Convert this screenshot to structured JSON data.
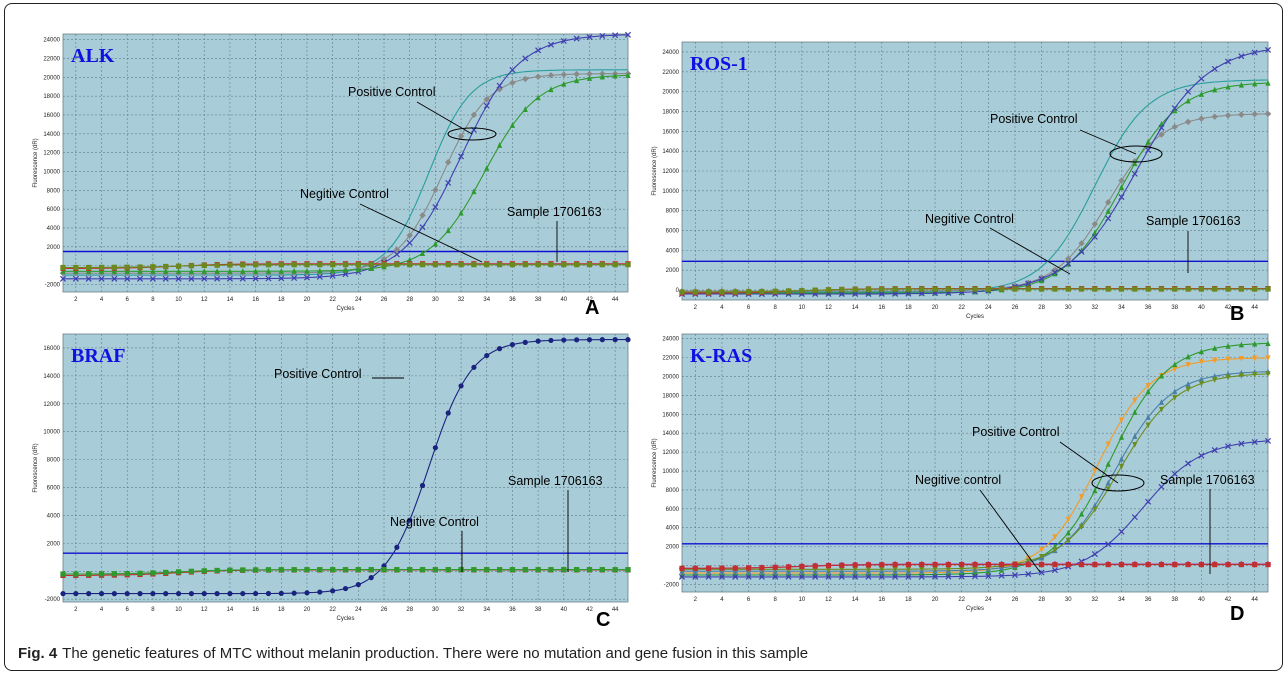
{
  "figure": {
    "caption_label": "Fig. 4",
    "caption_text": "The genetic features of MTC without melanin production. There were no mutation and gene fusion in this sample"
  },
  "colors": {
    "plot_bg": "#a9cdd8",
    "grid": "#5f7f8c",
    "threshold": "#1010d0",
    "gene_title": "#1010e0",
    "annotation": "#000000"
  },
  "chart_data": [
    {
      "id": "A",
      "type": "line",
      "title": "ALK",
      "panel_letter": "A",
      "xlabel": "Cycles",
      "ylabel": "Fluorescence (dR)",
      "xlim": [
        1,
        45
      ],
      "ylim": [
        -2800,
        24600
      ],
      "x_ticks": [
        2,
        4,
        6,
        8,
        10,
        12,
        14,
        16,
        18,
        20,
        22,
        24,
        26,
        28,
        30,
        32,
        34,
        36,
        38,
        40,
        42,
        44
      ],
      "y_ticks": [
        -2000,
        0,
        2000,
        4000,
        6000,
        8000,
        10000,
        12000,
        14000,
        16000,
        18000,
        20000,
        22000,
        24000
      ],
      "y_tick_labels": [
        "-2000",
        "",
        "2000",
        "4000",
        "6000",
        "8000",
        "10000",
        "12000",
        "14000",
        "16000",
        "18000",
        "20000",
        "22000",
        "24000"
      ],
      "threshold": 1500,
      "annotations": [
        "Positive Control",
        "Negitive Control",
        "Sample 1706163"
      ],
      "series": [
        {
          "color": "#2a9d9d",
          "marker": "none",
          "start": -1000,
          "top": 20800,
          "mid": 29.5,
          "k": 0.62
        },
        {
          "color": "#8a8a8a",
          "marker": "diamond",
          "start": -800,
          "top": 20400,
          "mid": 30.6,
          "k": 0.56
        },
        {
          "color": "#4040b0",
          "marker": "x",
          "start": -1400,
          "top": 24600,
          "mid": 32.0,
          "k": 0.44
        },
        {
          "color": "#2e9a2e",
          "marker": "triangle",
          "start": -600,
          "top": 20300,
          "mid": 33.8,
          "k": 0.48
        },
        {
          "color": "#c03030",
          "marker": "square",
          "start": -300,
          "top": 200,
          "mid": 10,
          "k": 0.5
        },
        {
          "color": "#6a8a20",
          "marker": "square",
          "start": -200,
          "top": 100,
          "mid": 10,
          "k": 0.5
        }
      ]
    },
    {
      "id": "B",
      "type": "line",
      "title": "ROS-1",
      "panel_letter": "B",
      "xlabel": "Cycles",
      "ylabel": "Fluorescence (dR)",
      "xlim": [
        1,
        45
      ],
      "ylim": [
        -1000,
        25000
      ],
      "x_ticks": [
        2,
        4,
        6,
        8,
        10,
        12,
        14,
        16,
        18,
        20,
        22,
        24,
        26,
        28,
        30,
        32,
        34,
        36,
        38,
        40,
        42,
        44
      ],
      "y_ticks": [
        0,
        2000,
        4000,
        6000,
        8000,
        10000,
        12000,
        14000,
        16000,
        18000,
        20000,
        22000,
        24000
      ],
      "y_tick_labels": [
        "0",
        "2000",
        "4000",
        "6000",
        "8000",
        "10000",
        "12000",
        "14000",
        "16000",
        "18000",
        "20000",
        "22000",
        "24000"
      ],
      "threshold": 2900,
      "annotations": [
        "Positive Control",
        "Negitive Control",
        "Sample 1706163"
      ],
      "series": [
        {
          "color": "#2a9d9d",
          "marker": "none",
          "start": -200,
          "top": 21200,
          "mid": 32.0,
          "k": 0.5
        },
        {
          "color": "#8a8a8a",
          "marker": "diamond",
          "start": -100,
          "top": 17800,
          "mid": 33.0,
          "k": 0.5
        },
        {
          "color": "#2e9a2e",
          "marker": "triangle",
          "start": -300,
          "top": 21000,
          "mid": 34.0,
          "k": 0.46
        },
        {
          "color": "#4040b0",
          "marker": "x",
          "start": -400,
          "top": 24800,
          "mid": 35.2,
          "k": 0.38
        },
        {
          "color": "#c03030",
          "marker": "square",
          "start": -300,
          "top": 150,
          "mid": 10,
          "k": 0.5
        },
        {
          "color": "#6a8a20",
          "marker": "square",
          "start": -200,
          "top": 100,
          "mid": 10,
          "k": 0.5
        }
      ]
    },
    {
      "id": "C",
      "type": "line",
      "title": "BRAF",
      "panel_letter": "C",
      "xlabel": "Cycles",
      "ylabel": "Fluorescence (dR)",
      "xlim": [
        1,
        45
      ],
      "ylim": [
        -2200,
        17000
      ],
      "x_ticks": [
        2,
        4,
        6,
        8,
        10,
        12,
        14,
        16,
        18,
        20,
        22,
        24,
        26,
        28,
        30,
        32,
        34,
        36,
        38,
        40,
        42,
        44
      ],
      "y_ticks": [
        -2000,
        0,
        2000,
        4000,
        6000,
        8000,
        10000,
        12000,
        14000,
        16000
      ],
      "y_tick_labels": [
        "-2000",
        "",
        "2000",
        "4000",
        "6000",
        "8000",
        "10000",
        "12000",
        "14000",
        "16000"
      ],
      "threshold": 1300,
      "annotations": [
        "Positive Control",
        "Negitive Control",
        "Sample 1706163"
      ],
      "series": [
        {
          "color": "#1a237e",
          "marker": "circle",
          "start": -1600,
          "top": 16600,
          "mid": 29.5,
          "k": 0.6
        },
        {
          "color": "#c03030",
          "marker": "square",
          "start": -300,
          "top": 100,
          "mid": 10,
          "k": 0.5
        },
        {
          "color": "#2e9a2e",
          "marker": "square",
          "start": -200,
          "top": 120,
          "mid": 10,
          "k": 0.5
        }
      ]
    },
    {
      "id": "D",
      "type": "line",
      "title": "K-RAS",
      "panel_letter": "D",
      "xlabel": "Cycles",
      "ylabel": "Fluorescence (dR)",
      "xlim": [
        1,
        45
      ],
      "ylim": [
        -2800,
        24500
      ],
      "x_ticks": [
        2,
        4,
        6,
        8,
        10,
        12,
        14,
        16,
        18,
        20,
        22,
        24,
        26,
        28,
        30,
        32,
        34,
        36,
        38,
        40,
        42,
        44
      ],
      "y_ticks": [
        -2000,
        0,
        2000,
        4000,
        6000,
        8000,
        10000,
        12000,
        14000,
        16000,
        18000,
        20000,
        22000,
        24000
      ],
      "y_tick_labels": [
        "-2000",
        "",
        "2000",
        "4000",
        "6000",
        "8000",
        "10000",
        "12000",
        "14000",
        "16000",
        "18000",
        "20000",
        "22000",
        "24000"
      ],
      "threshold": 2300,
      "annotations": [
        "Positive Control",
        "Negitive control",
        "Sample 1706163"
      ],
      "series": [
        {
          "color": "#f39c2a",
          "marker": "triangle-down",
          "start": -800,
          "top": 22000,
          "mid": 32.2,
          "k": 0.5
        },
        {
          "color": "#2e9a2e",
          "marker": "triangle",
          "start": -1000,
          "top": 23600,
          "mid": 33.2,
          "k": 0.47
        },
        {
          "color": "#4a7fa8",
          "marker": "triangle",
          "start": -600,
          "top": 20600,
          "mid": 33.5,
          "k": 0.48
        },
        {
          "color": "#6b8e23",
          "marker": "triangle-down",
          "start": -400,
          "top": 20400,
          "mid": 33.8,
          "k": 0.46
        },
        {
          "color": "#4040b0",
          "marker": "x",
          "start": -1200,
          "top": 13400,
          "mid": 35.6,
          "k": 0.45
        },
        {
          "color": "#b03aa0",
          "marker": "diamond",
          "start": -300,
          "top": 150,
          "mid": 10,
          "k": 0.5
        },
        {
          "color": "#c03030",
          "marker": "square",
          "start": -300,
          "top": 100,
          "mid": 10,
          "k": 0.5
        }
      ]
    }
  ]
}
